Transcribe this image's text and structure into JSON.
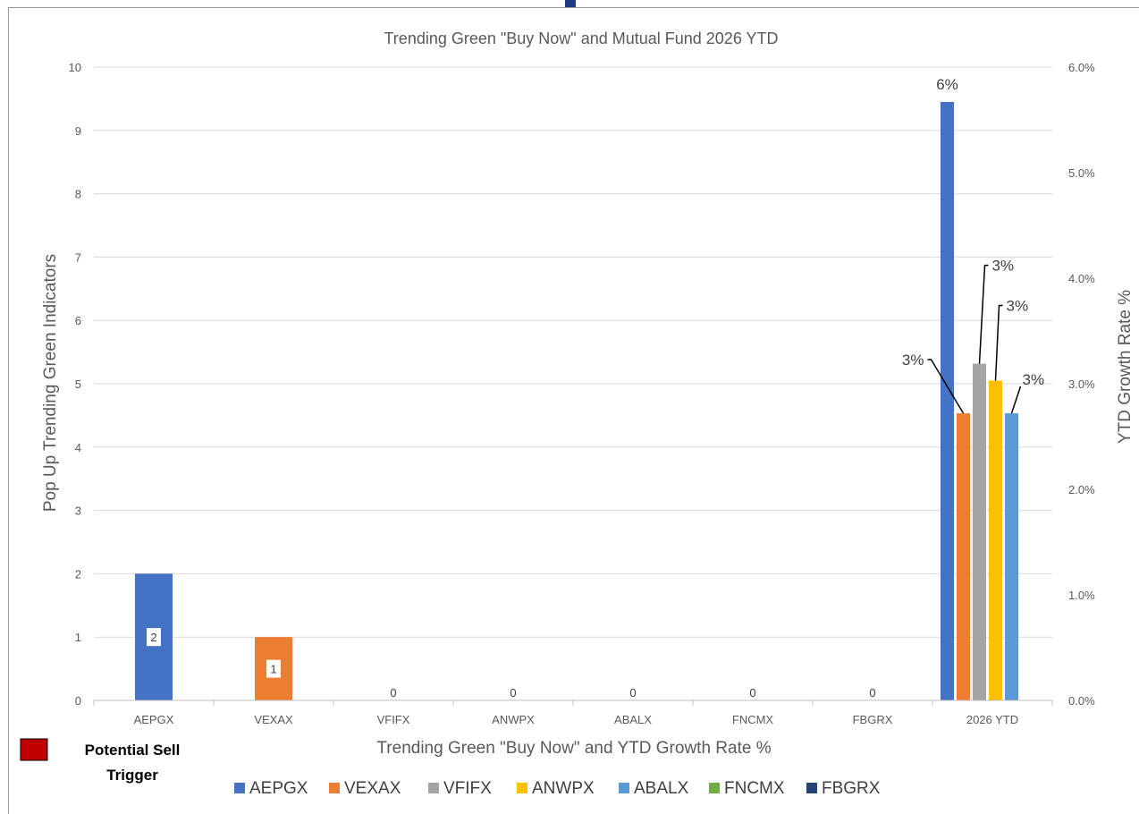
{
  "chart_data": {
    "type": "bar",
    "title": "Trending Green \"Buy Now\" and Mutual Fund 2026 YTD",
    "xlabel": "Trending Green \"Buy Now\" and YTD Growth Rate %",
    "ylabel": "Pop Up Trending Green Indicators",
    "y2label": "YTD Growth Rate %",
    "categories": [
      "AEPGX",
      "VEXAX",
      "VFIFX",
      "ANWPX",
      "ABALX",
      "FNCMX",
      "FBGRX",
      "2026 YTD"
    ],
    "ylim": [
      0,
      10
    ],
    "yticks": [
      "0",
      "1",
      "2",
      "3",
      "4",
      "5",
      "6",
      "7",
      "8",
      "9",
      "10"
    ],
    "y2lim": [
      0,
      0.06
    ],
    "y2ticks": [
      "0.0%",
      "1.0%",
      "2.0%",
      "3.0%",
      "4.0%",
      "5.0%",
      "6.0%"
    ],
    "indicator_series": [
      {
        "category": "AEPGX",
        "fund": "AEPGX",
        "value": 2,
        "label": "2"
      },
      {
        "category": "VEXAX",
        "fund": "VEXAX",
        "value": 1,
        "label": "1"
      },
      {
        "category": "VFIFX",
        "fund": "VFIFX",
        "value": 0,
        "label": "0"
      },
      {
        "category": "ANWPX",
        "fund": "ANWPX",
        "value": 0,
        "label": "0"
      },
      {
        "category": "ABALX",
        "fund": "ABALX",
        "value": 0,
        "label": "0"
      },
      {
        "category": "FNCMX",
        "fund": "FNCMX",
        "value": 0,
        "label": "0"
      },
      {
        "category": "FBGRX",
        "fund": "FBGRX",
        "value": 0,
        "label": "0"
      }
    ],
    "ytd_growth_series": [
      {
        "name": "AEPGX",
        "value": 0.0567,
        "label": "6%"
      },
      {
        "name": "VEXAX",
        "value": 0.0272,
        "label": "3%"
      },
      {
        "name": "VFIFX",
        "value": 0.0319,
        "label": "3%"
      },
      {
        "name": "ANWPX",
        "value": 0.0303,
        "label": "3%"
      },
      {
        "name": "ABALX",
        "value": 0.0272,
        "label": "3%"
      }
    ],
    "legend": {
      "placement": "bottom",
      "items": [
        {
          "name": "AEPGX",
          "color": "#4472c4"
        },
        {
          "name": "VEXAX",
          "color": "#ed7d31"
        },
        {
          "name": "VFIFX",
          "color": "#a5a5a5"
        },
        {
          "name": "ANWPX",
          "color": "#ffc000"
        },
        {
          "name": "ABALX",
          "color": "#5b9bd5"
        },
        {
          "name": "FNCMX",
          "color": "#70ad47"
        },
        {
          "name": "FBGRX",
          "color": "#264478"
        }
      ]
    },
    "grid": true
  },
  "note": {
    "label": "Potential Sell Trigger",
    "line1": "Potential Sell",
    "line2": "Trigger",
    "color": "#c00000"
  }
}
